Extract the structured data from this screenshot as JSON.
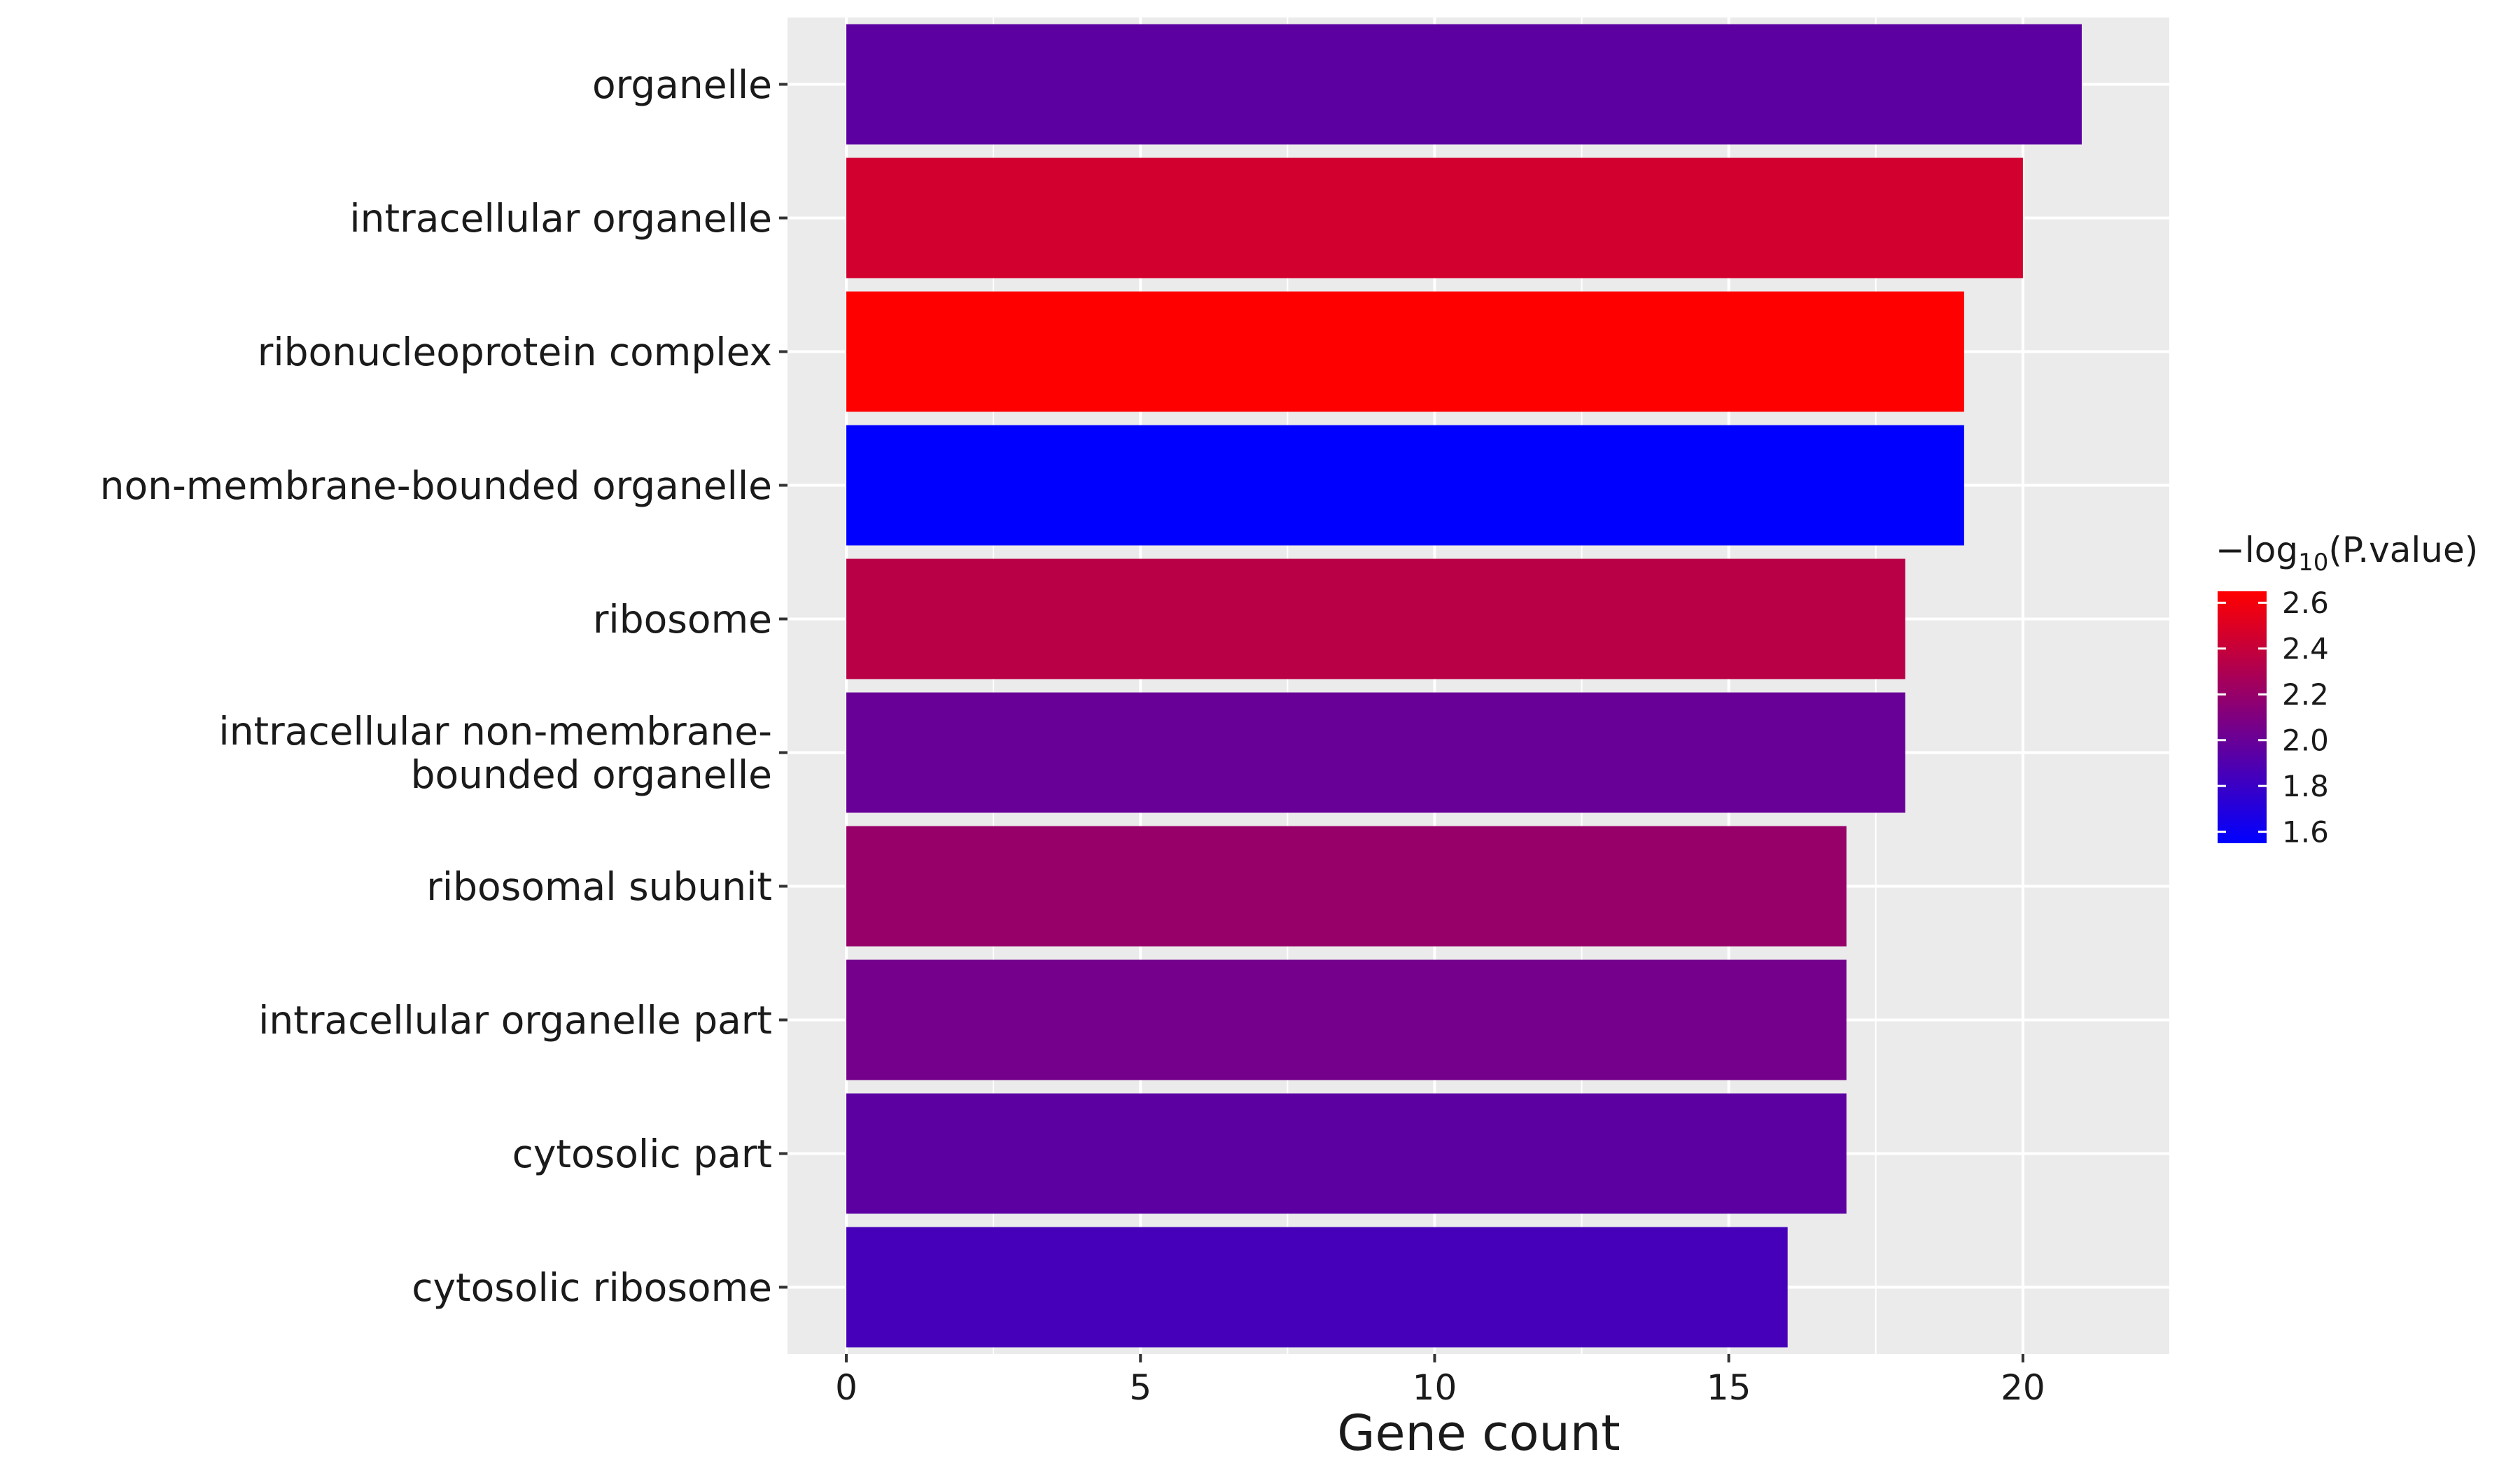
{
  "chart_data": {
    "type": "bar",
    "orientation": "horizontal",
    "xlabel": "Gene count",
    "ylabel": "",
    "xlim": [
      -1,
      22.5
    ],
    "x_ticks": [
      0,
      5,
      10,
      15,
      20
    ],
    "grid": true,
    "legend_position": "right",
    "categories": [
      [
        "organelle"
      ],
      [
        "intracellular organelle"
      ],
      [
        "ribonucleoprotein complex"
      ],
      [
        "non-membrane-bounded organelle"
      ],
      [
        "ribosome"
      ],
      [
        "intracellular non-membrane-",
        "bounded organelle"
      ],
      [
        "ribosomal subunit"
      ],
      [
        "intracellular organelle part"
      ],
      [
        "cytosolic part"
      ],
      [
        "cytosolic ribosome"
      ]
    ],
    "values": [
      21,
      20,
      19,
      19,
      18,
      18,
      17,
      17,
      17,
      16
    ],
    "color_values": [
      1.95,
      2.45,
      2.65,
      1.55,
      2.35,
      2.0,
      2.2,
      2.05,
      1.95,
      1.85
    ],
    "colorbar": {
      "title_prefix": "−log",
      "title_sub": "10",
      "title_suffix": "(P.value)",
      "min": 1.55,
      "max": 2.65,
      "ticks": [
        1.6,
        1.8,
        2.0,
        2.2,
        2.4,
        2.6
      ],
      "tick_labels": [
        "1.6",
        "1.8",
        "2.0",
        "2.2",
        "2.4",
        "2.6"
      ],
      "low_color": "#0000ff",
      "high_color": "#ff0000"
    },
    "panel_background": "#ebebeb",
    "grid_color": "#ffffff"
  }
}
